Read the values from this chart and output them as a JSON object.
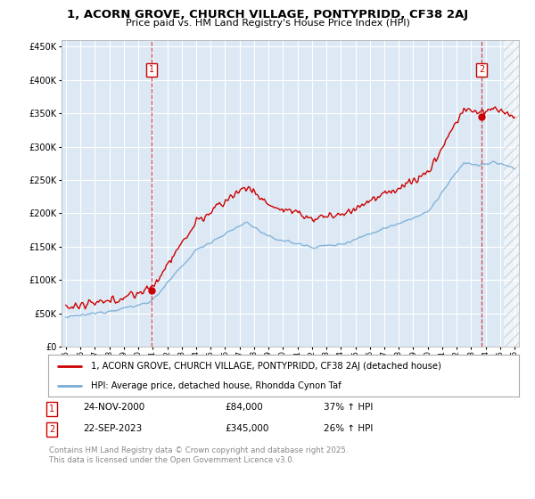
{
  "title1": "1, ACORN GROVE, CHURCH VILLAGE, PONTYPRIDD, CF38 2AJ",
  "title2": "Price paid vs. HM Land Registry's House Price Index (HPI)",
  "legend_line1": "1, ACORN GROVE, CHURCH VILLAGE, PONTYPRIDD, CF38 2AJ (detached house)",
  "legend_line2": "HPI: Average price, detached house, Rhondda Cynon Taf",
  "annotation1_label": "1",
  "annotation1_date": "24-NOV-2000",
  "annotation1_price": "£84,000",
  "annotation1_hpi": "37% ↑ HPI",
  "annotation2_label": "2",
  "annotation2_date": "22-SEP-2023",
  "annotation2_price": "£345,000",
  "annotation2_hpi": "26% ↑ HPI",
  "footer": "Contains HM Land Registry data © Crown copyright and database right 2025.\nThis data is licensed under the Open Government Licence v3.0.",
  "red_color": "#cc0000",
  "blue_color": "#7aadd4",
  "background_plot": "#dce9f5",
  "background_fig": "#ffffff",
  "ylim": [
    0,
    460000
  ],
  "yticks": [
    0,
    50000,
    100000,
    150000,
    200000,
    250000,
    300000,
    350000,
    400000,
    450000
  ],
  "xlim_start": 1994.7,
  "xlim_end": 2026.3,
  "sale1_time": 2000.9,
  "sale1_price": 84000,
  "sale2_time": 2023.72,
  "sale2_price": 345000
}
